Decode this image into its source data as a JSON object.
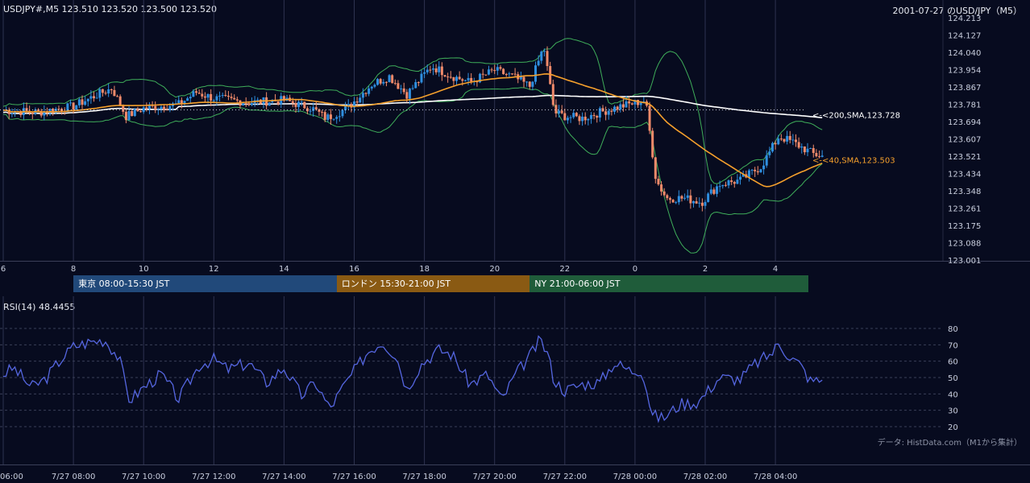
{
  "header": {
    "symbol_quote": "USDJPY#,M5 123.510 123.520 123.500 123.520",
    "title_right": "2001-07-27 のUSD/JPY（M5）"
  },
  "colors": {
    "background": "#070b1f",
    "grid": "#2e3350",
    "bull": "#2f8fe0",
    "bear": "#f08a6a",
    "sma40": "#f5a02c",
    "sma200": "#ffffff",
    "bollinger": "#3fae5a",
    "rsi": "#5566e0",
    "session_tokyo": "#21497a",
    "session_london": "#8a5a13",
    "session_ny": "#1f5c3a"
  },
  "chart_data": [
    {
      "type": "candlestick",
      "name_label": "USDJPY#,M5",
      "x_tick_labels": [
        "6",
        "8",
        "10",
        "12",
        "14",
        "16",
        "18",
        "20",
        "22",
        "0",
        "2",
        "4"
      ],
      "x_tick_hours": [
        6,
        8,
        10,
        12,
        14,
        16,
        18,
        20,
        22,
        24,
        26,
        28
      ],
      "y_tick_labels": [
        "124.213",
        "124.127",
        "124.040",
        "123.954",
        "123.867",
        "123.781",
        "123.694",
        "123.607",
        "123.521",
        "123.434",
        "123.348",
        "123.261",
        "123.175",
        "123.088",
        "123.001"
      ],
      "ylim": [
        123.001,
        124.213
      ],
      "xlim_hours": [
        6.0,
        29.35
      ],
      "candle_anchor_closes": [
        [
          6.0,
          123.75
        ],
        [
          7.0,
          123.74
        ],
        [
          8.0,
          123.77
        ],
        [
          8.7,
          123.83
        ],
        [
          9.1,
          123.86
        ],
        [
          9.5,
          123.72
        ],
        [
          10.0,
          123.76
        ],
        [
          11.0,
          123.78
        ],
        [
          11.5,
          123.84
        ],
        [
          12.0,
          123.81
        ],
        [
          13.0,
          123.79
        ],
        [
          14.0,
          123.8
        ],
        [
          14.8,
          123.76
        ],
        [
          15.2,
          123.71
        ],
        [
          15.8,
          123.76
        ],
        [
          16.5,
          123.88
        ],
        [
          17.0,
          123.92
        ],
        [
          17.5,
          123.83
        ],
        [
          18.2,
          123.97
        ],
        [
          18.8,
          123.92
        ],
        [
          19.3,
          123.89
        ],
        [
          20.0,
          123.95
        ],
        [
          20.5,
          123.92
        ],
        [
          21.0,
          123.87
        ],
        [
          21.4,
          124.07
        ],
        [
          21.7,
          123.74
        ],
        [
          22.0,
          123.72
        ],
        [
          22.5,
          123.71
        ],
        [
          23.0,
          123.74
        ],
        [
          23.6,
          123.77
        ],
        [
          24.3,
          123.8
        ],
        [
          24.6,
          123.4
        ],
        [
          24.9,
          123.31
        ],
        [
          25.4,
          123.31
        ],
        [
          25.9,
          123.29
        ],
        [
          26.4,
          123.38
        ],
        [
          27.0,
          123.4
        ],
        [
          27.6,
          123.47
        ],
        [
          28.1,
          123.62
        ],
        [
          28.5,
          123.59
        ],
        [
          29.1,
          123.53
        ],
        [
          29.35,
          123.52
        ]
      ],
      "indicators": {
        "sma40_label": "<-<40,SMA,123.503",
        "sma40_value": 123.503,
        "sma200_label": "<-<200,SMA,123.728",
        "sma200_value": 123.728,
        "bollinger": "upper/lower bands (green)"
      },
      "sessions": [
        {
          "label": "東京 08:00-15:30 JST",
          "from_hour": 8.0,
          "to_hour": 15.5
        },
        {
          "label": "ロンドン 15:30-21:00 JST",
          "from_hour": 15.5,
          "to_hour": 21.0
        },
        {
          "label": "NY 21:00-06:00 JST",
          "from_hour": 21.0,
          "to_hour": 30.0
        }
      ]
    },
    {
      "type": "line",
      "title": "RSI(14) 48.4455",
      "series": [
        {
          "name": "RSI(14)",
          "last_value": 48.4455
        }
      ],
      "ylim": [
        20,
        80
      ],
      "y_ticks": [
        20,
        30,
        40,
        50,
        60,
        70,
        80
      ],
      "x_tick_labels": [
        "06:00",
        "7/27 08:00",
        "7/27 10:00",
        "7/27 12:00",
        "7/27 14:00",
        "7/27 16:00",
        "7/27 18:00",
        "7/27 20:00",
        "7/27 22:00",
        "7/28 00:00",
        "7/28 02:00",
        "7/28 04:00"
      ],
      "rsi_anchor_points": [
        [
          6.0,
          52
        ],
        [
          6.3,
          56
        ],
        [
          6.8,
          44
        ],
        [
          7.2,
          49
        ],
        [
          7.6,
          60
        ],
        [
          8.0,
          69
        ],
        [
          8.5,
          72
        ],
        [
          8.9,
          73
        ],
        [
          9.3,
          62
        ],
        [
          9.6,
          36
        ],
        [
          10.0,
          44
        ],
        [
          10.5,
          52
        ],
        [
          11.0,
          37
        ],
        [
          11.6,
          58
        ],
        [
          12.0,
          61
        ],
        [
          12.4,
          55
        ],
        [
          13.0,
          59
        ],
        [
          13.5,
          47
        ],
        [
          14.0,
          56
        ],
        [
          14.5,
          39
        ],
        [
          14.9,
          47
        ],
        [
          15.3,
          31
        ],
        [
          15.8,
          48
        ],
        [
          16.4,
          66
        ],
        [
          16.8,
          72
        ],
        [
          17.2,
          63
        ],
        [
          17.5,
          43
        ],
        [
          17.9,
          58
        ],
        [
          18.4,
          67
        ],
        [
          18.8,
          64
        ],
        [
          19.3,
          46
        ],
        [
          19.8,
          52
        ],
        [
          20.2,
          36
        ],
        [
          20.6,
          52
        ],
        [
          21.0,
          63
        ],
        [
          21.3,
          73
        ],
        [
          21.5,
          65
        ],
        [
          21.7,
          48
        ],
        [
          22.0,
          42
        ],
        [
          22.5,
          46
        ],
        [
          23.0,
          47
        ],
        [
          23.4,
          59
        ],
        [
          23.9,
          54
        ],
        [
          24.2,
          55
        ],
        [
          24.5,
          27
        ],
        [
          24.8,
          25
        ],
        [
          25.3,
          34
        ],
        [
          25.8,
          35
        ],
        [
          26.4,
          50
        ],
        [
          27.0,
          49
        ],
        [
          27.4,
          58
        ],
        [
          27.9,
          65
        ],
        [
          28.1,
          71
        ],
        [
          28.4,
          63
        ],
        [
          28.7,
          58
        ],
        [
          29.0,
          48
        ],
        [
          29.35,
          48.45
        ]
      ],
      "credit": "データ: HistData.com（M1から集計）"
    }
  ]
}
